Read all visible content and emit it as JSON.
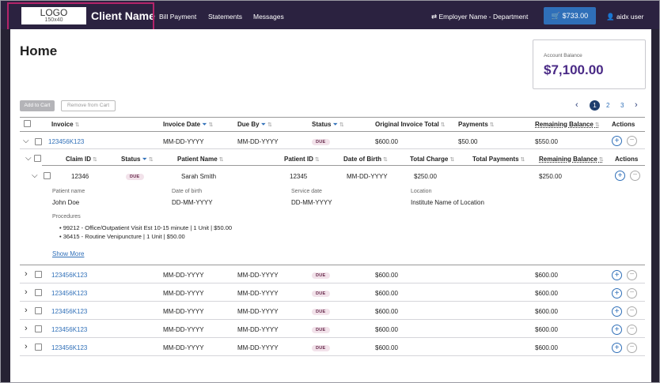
{
  "header": {
    "logo_text": "LOGO",
    "logo_size": "150x40",
    "client_name": "Client Name",
    "nav": [
      "Bill Payment",
      "Statements",
      "Messages"
    ],
    "employer": "Employer Name - Department",
    "cart_total": "$733.00",
    "user": "aidx user"
  },
  "page": {
    "title": "Home",
    "balance_label": "Account Balance",
    "balance_value": "$7,100.00",
    "add_to_cart": "Add to Cart",
    "remove_from_cart": "Remove from Cart",
    "pages": [
      "1",
      "2",
      "3"
    ]
  },
  "invoice_table": {
    "headers": [
      "Invoice",
      "Invoice Date",
      "Due By",
      "Status",
      "Original Invoice Total",
      "Payments",
      "Remaining Balance",
      "Actions"
    ],
    "expanded_row": {
      "invoice": "123456K123",
      "invoice_date": "MM-DD-YYYY",
      "due_by": "MM-DD-YYYY",
      "status": "DUE",
      "original_total": "$600.00",
      "payments": "$50.00",
      "remaining": "$550.00"
    },
    "rows": [
      {
        "invoice": "123456K123",
        "invoice_date": "MM-DD-YYYY",
        "due_by": "MM-DD-YYYY",
        "status": "DUE",
        "original_total": "$600.00",
        "remaining": "$600.00"
      },
      {
        "invoice": "123456K123",
        "invoice_date": "MM-DD-YYYY",
        "due_by": "MM-DD-YYYY",
        "status": "DUE",
        "original_total": "$600.00",
        "remaining": "$600.00"
      },
      {
        "invoice": "123456K123",
        "invoice_date": "MM-DD-YYYY",
        "due_by": "MM-DD-YYYY",
        "status": "DUE",
        "original_total": "$600.00",
        "remaining": "$600.00"
      },
      {
        "invoice": "123456K123",
        "invoice_date": "MM-DD-YYYY",
        "due_by": "MM-DD-YYYY",
        "status": "DUE",
        "original_total": "$600.00",
        "remaining": "$600.00"
      },
      {
        "invoice": "123456K123",
        "invoice_date": "MM-DD-YYYY",
        "due_by": "MM-DD-YYYY",
        "status": "DUE",
        "original_total": "$600.00",
        "remaining": "$600.00"
      }
    ]
  },
  "claim_table": {
    "headers": [
      "Claim ID",
      "Status",
      "Patient Name",
      "Patient ID",
      "Date of Birth",
      "Total Charge",
      "Total Payments",
      "Remaining Balance",
      "Actions"
    ],
    "row": {
      "claim_id": "12346",
      "status": "DUE",
      "patient_name": "Sarah Smith",
      "patient_id": "12345",
      "dob": "MM-DD-YYYY",
      "total_charge": "$250.00",
      "remaining": "$250.00"
    },
    "detail": {
      "patient_name_label": "Patient name",
      "patient_name": "John Doe",
      "dob_label": "Date of birth",
      "dob": "DD-MM-YYYY",
      "service_date_label": "Service date",
      "service_date": "DD-MM-YYYY",
      "location_label": "Location",
      "location": "Institute Name of Location",
      "procedures_label": "Procedures",
      "procedures": [
        "99212 - Office/Outpatient Visit Est 10-15 minute | 1 Unit | $50.00",
        "36415 - Routine Venipuncture | 1 Unit | $50.00"
      ],
      "show_more": "Show More"
    }
  },
  "colors": {
    "topbar": "#2b2240",
    "accent": "#2f6fb8",
    "balance": "#4a2a86",
    "highlight_border": "#b3246a"
  }
}
